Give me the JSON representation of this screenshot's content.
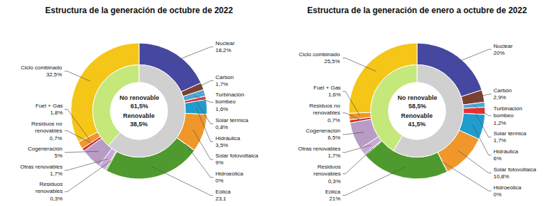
{
  "chart_data": [
    {
      "type": "donut",
      "title": "Estructura de la generación de octubre de 2022",
      "series": [
        {
          "categories": [
            "Nuclear\n18,2%",
            "Carbón\n1,7%",
            "Turbinación\nbombeo\n1,6%",
            "Solar térmica\n0,8%",
            "Hidráulica\n3,5%",
            "Solar fotovoltaica\n9%",
            "Hidroeólica\n0%",
            "Eólica\n23,1",
            "Residuos\nrenovables\n0,3%",
            "Otras renovables\n1,7%",
            "Cogeneración\n5%",
            "Residuos no\nrenovables\n0,7%",
            "Fuel + Gas\n1,8%",
            "Ciclo combinado\n32,5%"
          ],
          "values": [
            18.2,
            1.7,
            1.6,
            0.8,
            3.5,
            9.0,
            0.05,
            23.1,
            0.3,
            1.7,
            5.0,
            0.7,
            1.8,
            32.5
          ],
          "colors": [
            "#4547a0",
            "#7b4030",
            "#4da6d5",
            "#e83030",
            "#1f9dcd",
            "#f0972a",
            "#7aab3a",
            "#4e9a2f",
            "#6ab038",
            "#c9a8d8",
            "#b89cc5",
            "#cc3333",
            "#f0972a",
            "#f5c518"
          ]
        },
        {
          "categories": [
            "No renovable\n61,5%",
            "Renovable\n38,5%"
          ],
          "values": [
            61.5,
            38.5
          ],
          "colors": [
            "#d0d0d0",
            "#c5e87a"
          ]
        }
      ]
    },
    {
      "type": "donut",
      "title": "Estructura de la generación de enero a octubre de 2022",
      "series": [
        {
          "categories": [
            "Nuclear\n20%",
            "Carbón\n2,9%",
            "Turbinación\nbombeo\n1,2%",
            "Solar térmica\n1,7%",
            "Hidráulica\n6%",
            "Solar fotovoltaica\n10,8%",
            "Hidroeólica\n0%",
            "Eólica\n21%",
            "Residuos\nrenovables\n0,3%",
            "Otras renovables\n1,7%",
            "Cogeneración\n6,5%",
            "Residuos no\nrenovables\n0,7%",
            "Fuel + Gas\n1,6%",
            "Ciclo combinado\n25,5%"
          ],
          "values": [
            20.0,
            2.9,
            1.2,
            1.7,
            6.0,
            10.8,
            0.05,
            21.0,
            0.3,
            1.7,
            6.5,
            0.7,
            1.6,
            25.5
          ],
          "colors": [
            "#4547a0",
            "#7b4030",
            "#4da6d5",
            "#e83030",
            "#1f9dcd",
            "#f0972a",
            "#7aab3a",
            "#4e9a2f",
            "#6ab038",
            "#c9a8d8",
            "#b89cc5",
            "#cc3333",
            "#f0972a",
            "#f5c518"
          ]
        },
        {
          "categories": [
            "No renovable\n58,5%",
            "Renovable\n41,5%"
          ],
          "values": [
            58.5,
            41.5
          ],
          "colors": [
            "#d0d0d0",
            "#c5e87a"
          ]
        }
      ]
    }
  ]
}
